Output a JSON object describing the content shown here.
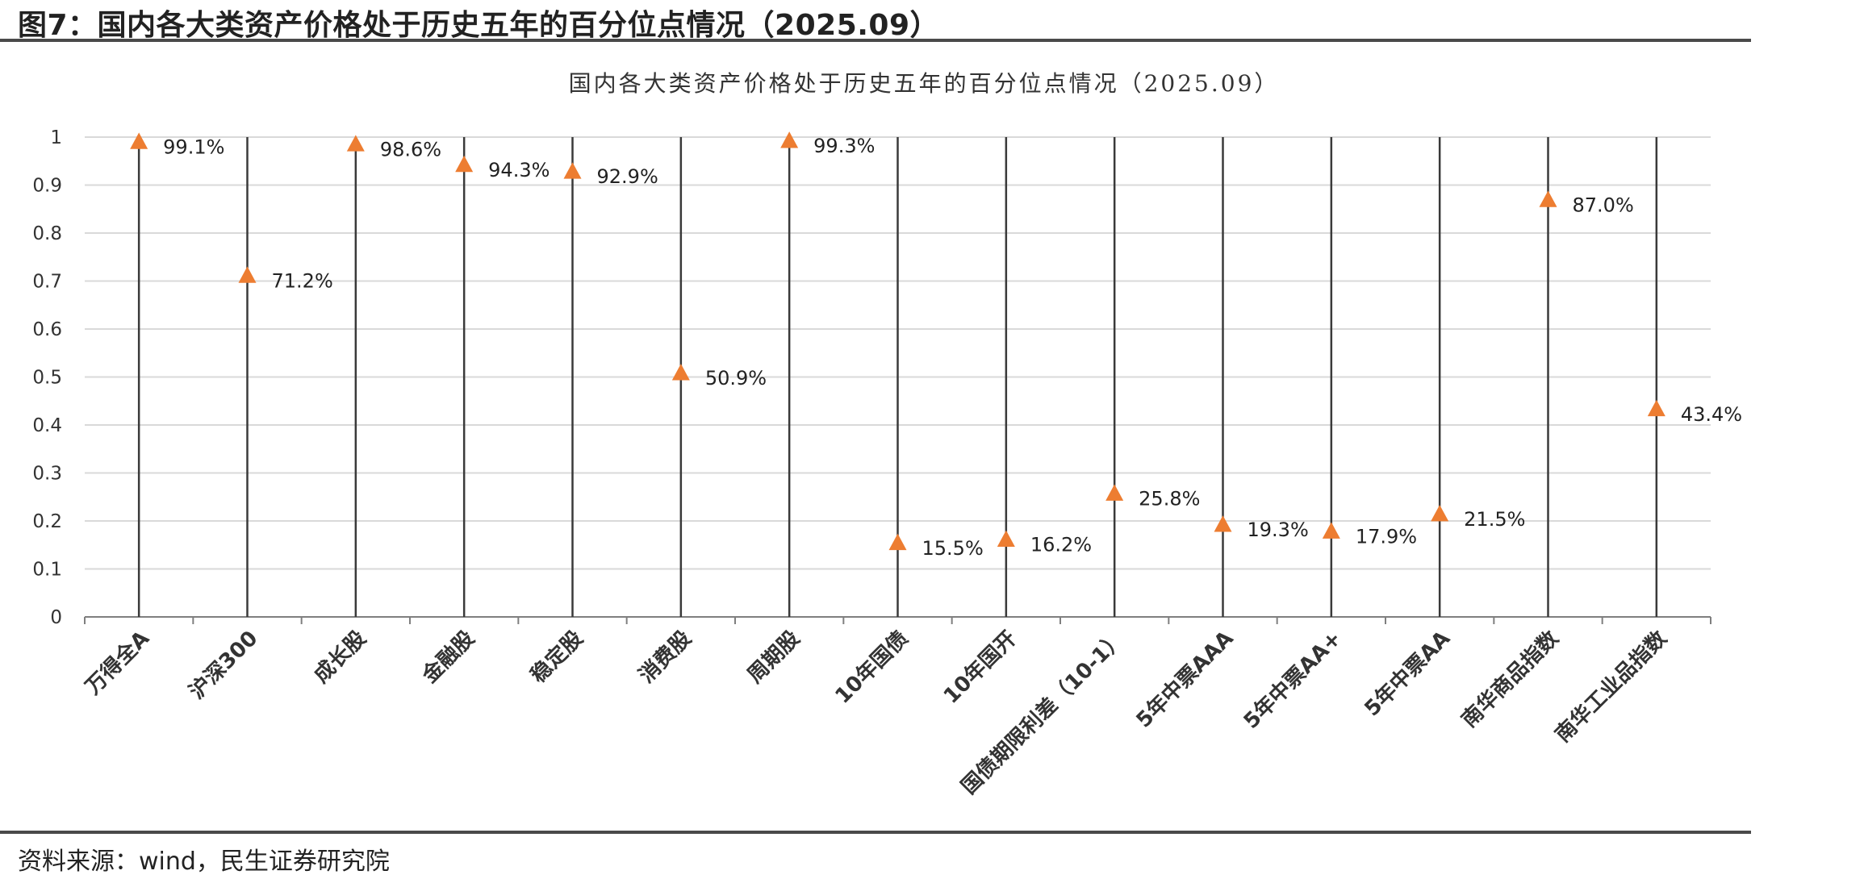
{
  "figure": {
    "title": "图7：国内各大类资产价格处于历史五年的百分位点情况（2025.09）",
    "source": "资料来源：wind，民生证券研究院"
  },
  "colors": {
    "marker": "#ED7D31",
    "stem": "#3a3a3a",
    "grid": "#d9d9d9",
    "axis": "#7f7f7f"
  },
  "chart_data": {
    "type": "scatter",
    "title": "国内各大类资产价格处于历史五年的百分位点情况（2025.09）",
    "xlabel": "",
    "ylabel": "",
    "ylim": [
      0,
      1
    ],
    "yticks": [
      "0",
      "0.1",
      "0.2",
      "0.3",
      "0.4",
      "0.5",
      "0.6",
      "0.7",
      "0.8",
      "0.9",
      "1"
    ],
    "grid": true,
    "legend": "none",
    "marker": "triangle",
    "categories": [
      "万得全A",
      "沪深300",
      "成长股",
      "金融股",
      "稳定股",
      "消费股",
      "周期股",
      "10年国债",
      "10年国开",
      "国债期限利差（10-1）",
      "5年中票AAA",
      "5年中票AA+",
      "5年中票AA",
      "南华商品指数",
      "南华工业品指数"
    ],
    "values": [
      0.991,
      0.712,
      0.986,
      0.943,
      0.929,
      0.509,
      0.993,
      0.155,
      0.162,
      0.258,
      0.193,
      0.179,
      0.215,
      0.87,
      0.434
    ],
    "labels": [
      "99.1%",
      "71.2%",
      "98.6%",
      "94.3%",
      "92.9%",
      "50.9%",
      "99.3%",
      "15.5%",
      "16.2%",
      "25.8%",
      "19.3%",
      "17.9%",
      "21.5%",
      "87.0%",
      "43.4%"
    ]
  }
}
